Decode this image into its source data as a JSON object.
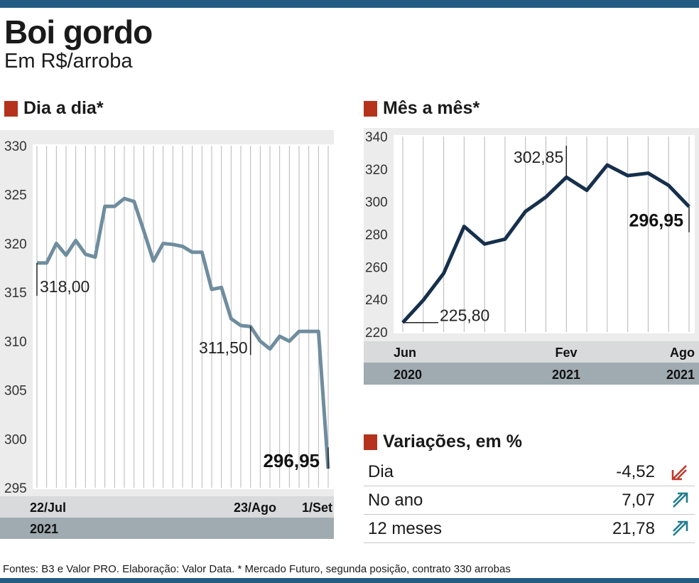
{
  "title": "Boi gordo",
  "subtitle": "Em R$/arroba",
  "colors": {
    "brand_blue": "#245b82",
    "accent_red": "#b5321c",
    "daily_line": "#6f8d9e",
    "monthly_line": "#16304c",
    "axis_band_light": "#d8dadb",
    "axis_band_dark": "#9fabb1",
    "arrow_down": "#c0392b",
    "arrow_up": "#1f7d8f"
  },
  "chart_data": [
    {
      "type": "line",
      "section_title": "Dia a dia*",
      "ylim": [
        295,
        330
      ],
      "yticks": [
        "330",
        "325",
        "320",
        "315",
        "310",
        "305",
        "300",
        "295"
      ],
      "x_tick_labels": [
        "22/Jul",
        "23/Ago",
        "1/Set"
      ],
      "year_label": "2021",
      "values": [
        318.0,
        318.0,
        320.0,
        318.8,
        320.3,
        318.9,
        318.6,
        323.8,
        323.8,
        324.6,
        324.3,
        321.3,
        318.2,
        320.0,
        319.9,
        319.7,
        319.1,
        319.1,
        315.3,
        315.5,
        312.3,
        311.6,
        311.5,
        310.0,
        309.2,
        310.5,
        310.0,
        311.0,
        311.0,
        311.0,
        296.95
      ],
      "annotations": [
        {
          "label": "318,00",
          "value": 318.0
        },
        {
          "label": "311,50",
          "value": 311.5
        },
        {
          "label": "296,95",
          "value": 296.95
        }
      ]
    },
    {
      "type": "line",
      "section_title": "Mês a mês*",
      "ylim": [
        220,
        340
      ],
      "yticks": [
        "340",
        "320",
        "300",
        "280",
        "260",
        "240",
        "220"
      ],
      "x_tick_labels": [
        "Jun",
        "Fev",
        "Ago"
      ],
      "year_labels": [
        "2020",
        "2021",
        "2021"
      ],
      "values": [
        225.8,
        239.5,
        256.0,
        284.8,
        274.0,
        277.0,
        294.0,
        302.85,
        315.0,
        307.0,
        322.5,
        316.0,
        317.5,
        310.0,
        296.95
      ],
      "annotations": [
        {
          "label": "225,80",
          "value": 225.8
        },
        {
          "label": "302,85",
          "value": 302.85
        },
        {
          "label": "296,95",
          "value": 296.95
        }
      ]
    }
  ],
  "variacoes": {
    "title": "Variações, em %",
    "rows": [
      {
        "label": "Dia",
        "value": "-4,52",
        "icon": "arrow-down-left-icon",
        "dir": "down"
      },
      {
        "label": "No ano",
        "value": "7,07",
        "icon": "arrow-up-right-icon",
        "dir": "up"
      },
      {
        "label": "12 meses",
        "value": "21,78",
        "icon": "arrow-up-right-icon",
        "dir": "up"
      }
    ]
  },
  "footer": "Fontes:  B3 e Valor PRO. Elaboração: Valor Data. * Mercado Futuro, segunda posição, contrato 330 arrobas"
}
